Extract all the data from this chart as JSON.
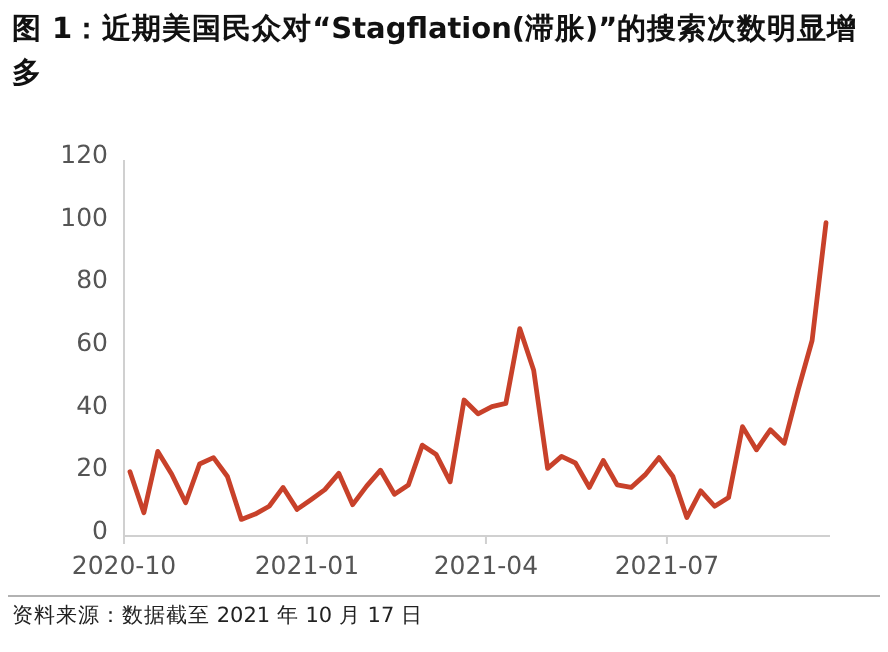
{
  "chart_data": {
    "type": "line",
    "title": "图 1：近期美国民众对“Stagflation(滞胀)”的搜索次数明显增多",
    "annotations": [
      "资料来源：数据截至 2021 年 10 月 17 日"
    ],
    "x": [
      "2020-10-04",
      "2020-10-11",
      "2020-10-18",
      "2020-10-25",
      "2020-11-01",
      "2020-11-08",
      "2020-11-15",
      "2020-11-22",
      "2020-11-29",
      "2020-12-06",
      "2020-12-13",
      "2020-12-20",
      "2020-12-27",
      "2021-01-03",
      "2021-01-10",
      "2021-01-17",
      "2021-01-24",
      "2021-01-31",
      "2021-02-07",
      "2021-02-14",
      "2021-02-21",
      "2021-02-28",
      "2021-03-07",
      "2021-03-14",
      "2021-03-21",
      "2021-03-28",
      "2021-04-04",
      "2021-04-11",
      "2021-04-18",
      "2021-04-25",
      "2021-05-02",
      "2021-05-09",
      "2021-05-16",
      "2021-05-23",
      "2021-05-30",
      "2021-06-06",
      "2021-06-13",
      "2021-06-20",
      "2021-06-27",
      "2021-07-04",
      "2021-07-11",
      "2021-07-18",
      "2021-07-25",
      "2021-08-01",
      "2021-08-08",
      "2021-08-15",
      "2021-08-22",
      "2021-08-29",
      "2021-09-05",
      "2021-09-12",
      "2021-09-19"
    ],
    "series": [
      {
        "color": "#c8412a",
        "values": [
          20.5,
          7.4,
          27,
          19.7,
          10.6,
          23,
          25,
          19,
          5.3,
          7,
          9.5,
          15.5,
          8.5,
          11.6,
          14.8,
          20,
          10,
          15.9,
          21,
          13.3,
          16.3,
          29,
          26,
          17.3,
          43.4,
          39,
          41.3,
          42.3,
          66.2,
          52.9,
          21.6,
          25.4,
          23.3,
          15.5,
          24.1,
          16.3,
          15.5,
          19.5,
          25,
          19,
          5.9,
          14.4,
          9.5,
          12.3,
          34.9,
          27.5,
          33.9,
          29.6,
          46.6,
          62.4,
          100
        ]
      }
    ],
    "xlim": [
      "2020-10-01",
      "2021-09-21"
    ],
    "xticks": [
      "2020-10",
      "2021-01",
      "2021-04",
      "2021-07"
    ],
    "ylim": [
      0,
      120
    ],
    "yticks": [
      0,
      20,
      40,
      60,
      80,
      100,
      120
    ],
    "grid": false,
    "marker": "none",
    "line_style": "solid"
  }
}
